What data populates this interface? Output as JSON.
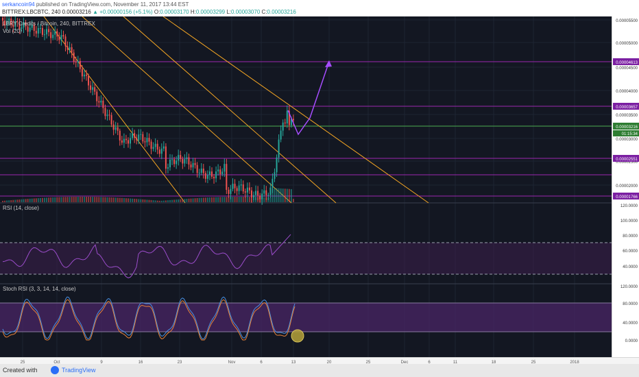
{
  "header": {
    "author": "serkancoin94",
    "published": "published on TradingView.com, November 11, 2017 13:44 EST",
    "symbol": "BITTREX:LBCBTC, 240",
    "price": "0.00003216",
    "change": "+0.00000156 (+5.1%)",
    "o_label": "O:",
    "o_value": "0.00003170",
    "h_label": "H:",
    "h_value": "0.00003299",
    "l_label": "L:",
    "l_value": "0.00003070",
    "c_label": "C:",
    "c_value": "0.00003216"
  },
  "main_panel": {
    "title": "LBRY Credits / Bitcoin, 240, BITTREX",
    "vol_label": "Vol (20)",
    "price_ticks": [
      "0.00005500",
      "0.00005000",
      "0.00004500",
      "0.00004000",
      "0.00003500",
      "0.00003000",
      "0.00002500",
      "0.00002000"
    ],
    "levels": [
      "0.00004613",
      "0.00003657",
      "0.00003216",
      "0.00002551",
      "0.00001766"
    ],
    "countdown": "01:15:34"
  },
  "rsi_panel": {
    "title": "RSI (14, close)",
    "ticks": [
      "120.0000",
      "100.0000",
      "80.0000",
      "60.0000",
      "40.0000"
    ]
  },
  "stoch_panel": {
    "title": "Stoch RSI (3, 3, 14, 14, close)",
    "ticks": [
      "120.0000",
      "80.0000",
      "40.0000",
      "0.0000"
    ]
  },
  "time_axis": {
    "labels": [
      "25",
      "Oct",
      "9",
      "16",
      "23",
      "Nov",
      "6",
      "13",
      "20",
      "25",
      "Dec",
      "6",
      "11",
      "18",
      "25",
      "2018"
    ]
  },
  "footer": {
    "created_with": "Created with",
    "brand": "TradingView"
  },
  "colors": {
    "background": "#131722",
    "level_line": "#9c27b0",
    "trend_line": "#f5a623",
    "green_line": "#4caf50",
    "up_candle": "#26a69a",
    "down_candle": "#ef5350"
  }
}
